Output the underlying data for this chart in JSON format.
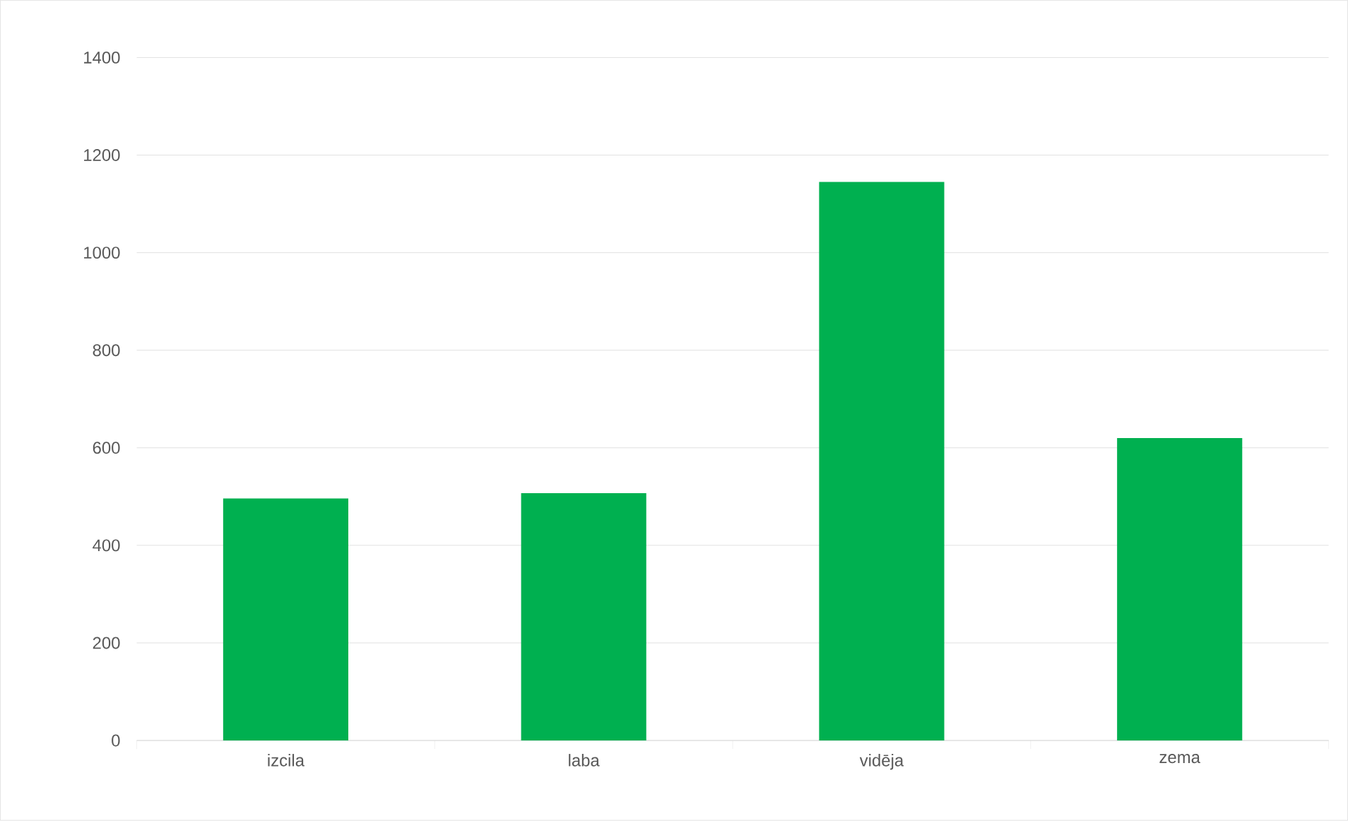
{
  "chart_data": {
    "type": "bar",
    "categories": [
      "izcila",
      "laba",
      "vidēja",
      "zema"
    ],
    "values": [
      496,
      507,
      1145,
      620
    ],
    "color": "#00b050",
    "ylim": [
      0,
      1400
    ],
    "yticks": [
      0,
      200,
      400,
      600,
      800,
      1000,
      1200,
      1400
    ],
    "grid": "y"
  }
}
